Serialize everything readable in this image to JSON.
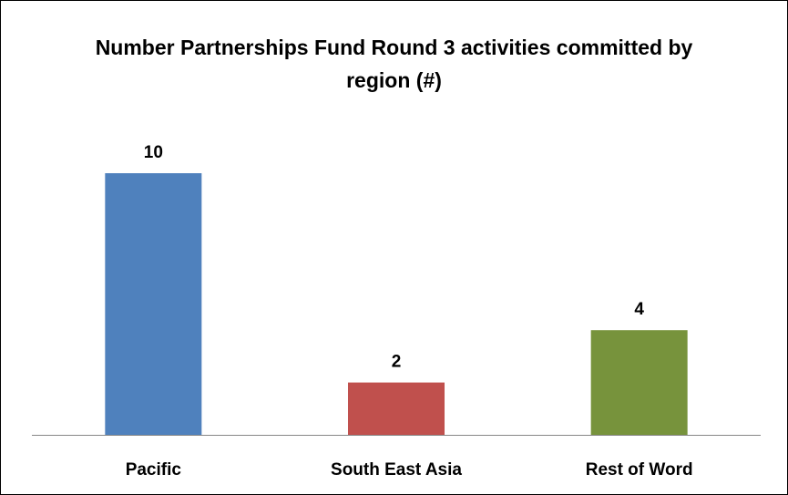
{
  "chart_data": {
    "type": "bar",
    "title": "Number Partnerships Fund Round 3 activities committed by region (#)",
    "categories": [
      "Pacific",
      "South East Asia",
      "Rest of Word"
    ],
    "values": [
      10,
      2,
      4
    ],
    "colors": [
      "#4f81bd",
      "#c0504d",
      "#77933c"
    ],
    "data_labels": true
  }
}
